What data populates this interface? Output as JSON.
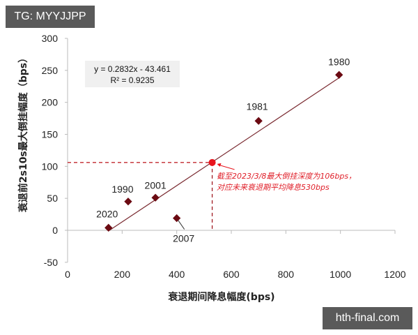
{
  "watermarks": {
    "top_left": "TG: MYYJJPP",
    "bottom_right": "hth-final.com"
  },
  "chart_data": {
    "type": "scatter",
    "title": "",
    "xlabel": "衰退期间降息幅度(bps)",
    "ylabel": "衰退前2s10s最大倒挂幅度（bps）",
    "xlim": [
      0,
      1200
    ],
    "ylim": [
      -50,
      300
    ],
    "x_ticks": [
      "0",
      "200",
      "400",
      "600",
      "800",
      "1000",
      "1200"
    ],
    "y_ticks": [
      "300",
      "250",
      "200",
      "150",
      "100",
      "50",
      "0",
      "-50"
    ],
    "points": [
      {
        "label": "1980",
        "x": 995,
        "y": 243
      },
      {
        "label": "1981",
        "x": 700,
        "y": 171
      },
      {
        "label": "1990",
        "x": 222,
        "y": 45
      },
      {
        "label": "2001",
        "x": 322,
        "y": 51
      },
      {
        "label": "2020",
        "x": 150,
        "y": 4
      },
      {
        "label": "2007",
        "x": 400,
        "y": 19
      }
    ],
    "trendline": {
      "equation": "y = 0.2832x - 43.461",
      "r2": "R² = 0.9235",
      "slope": 0.2832,
      "intercept": -43.461
    },
    "highlight": {
      "x": 530,
      "y": 106,
      "annotation_line1": "截至2023/3/8最大倒挂深度为106bps，",
      "annotation_line2": "对应未来衰退期平均降息530bps"
    },
    "colors": {
      "points": "#6b0a12",
      "trendline": "#7a2a30",
      "highlight": "#e8141c",
      "annotation": "#e0202a"
    },
    "grid": false,
    "legend": "none"
  }
}
